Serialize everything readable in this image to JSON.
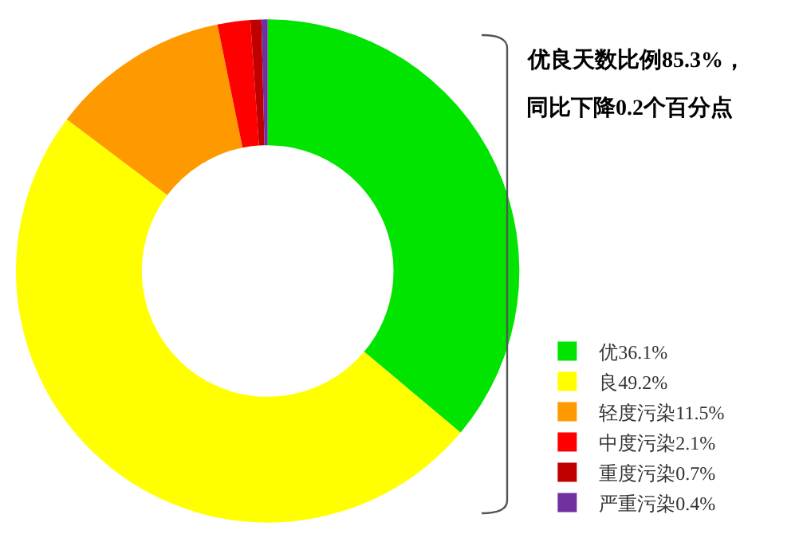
{
  "chart_data": {
    "type": "donut",
    "categories": [
      "优36.1%",
      "良49.2%",
      "轻度污染11.5%",
      "中度污染2.1%",
      "重度污染0.7%",
      "严重污染0.4%"
    ],
    "values": [
      36.1,
      49.2,
      11.5,
      2.1,
      0.7,
      0.4
    ],
    "colors": [
      "#00e400",
      "#ffff00",
      "#ff9900",
      "#ff0000",
      "#c00000",
      "#7030a0"
    ],
    "legend": "bottom right",
    "annotations": [
      "优良天数比例85.3%，",
      "同比下降0.2个百分点"
    ]
  }
}
